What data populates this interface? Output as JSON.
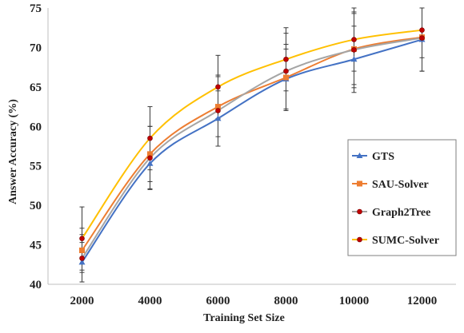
{
  "chart_data": {
    "type": "line",
    "title": "",
    "xlabel": "Training Set Size",
    "ylabel": "Answer Accuracy (%)",
    "x": [
      2000,
      4000,
      6000,
      8000,
      10000,
      12000
    ],
    "ylim": [
      40,
      75
    ],
    "yticks": [
      40,
      45,
      50,
      55,
      60,
      65,
      70,
      75
    ],
    "grid": false,
    "legend_position": "right",
    "series": [
      {
        "name": "GTS",
        "color": "#4472c4",
        "marker": "triangle",
        "values": [
          42.8,
          55.3,
          61.0,
          66.0,
          68.5,
          71.0
        ],
        "error": [
          2.5,
          3.2,
          3.5,
          3.8,
          4.2,
          4.0
        ]
      },
      {
        "name": "SAU-Solver",
        "color": "#ed7d31",
        "marker": "square",
        "values": [
          44.3,
          56.5,
          62.5,
          66.2,
          69.8,
          71.3
        ],
        "error": [
          2.8,
          3.5,
          3.8,
          4.2,
          4.5,
          4.3
        ]
      },
      {
        "name": "Graph2Tree",
        "color": "#a5a5a5",
        "marker": "circle",
        "values": [
          43.3,
          56.0,
          62.0,
          67.0,
          69.7,
          71.2
        ],
        "error": [
          3.0,
          4.0,
          4.5,
          4.8,
          4.8,
          4.2
        ]
      },
      {
        "name": "SUMC-Solver",
        "color": "#ffc000",
        "marker": "circle",
        "values": [
          45.8,
          58.5,
          65.0,
          68.5,
          71.0,
          72.2
        ],
        "error": [
          4.0,
          4.0,
          4.0,
          4.0,
          4.0,
          3.5
        ]
      }
    ]
  }
}
